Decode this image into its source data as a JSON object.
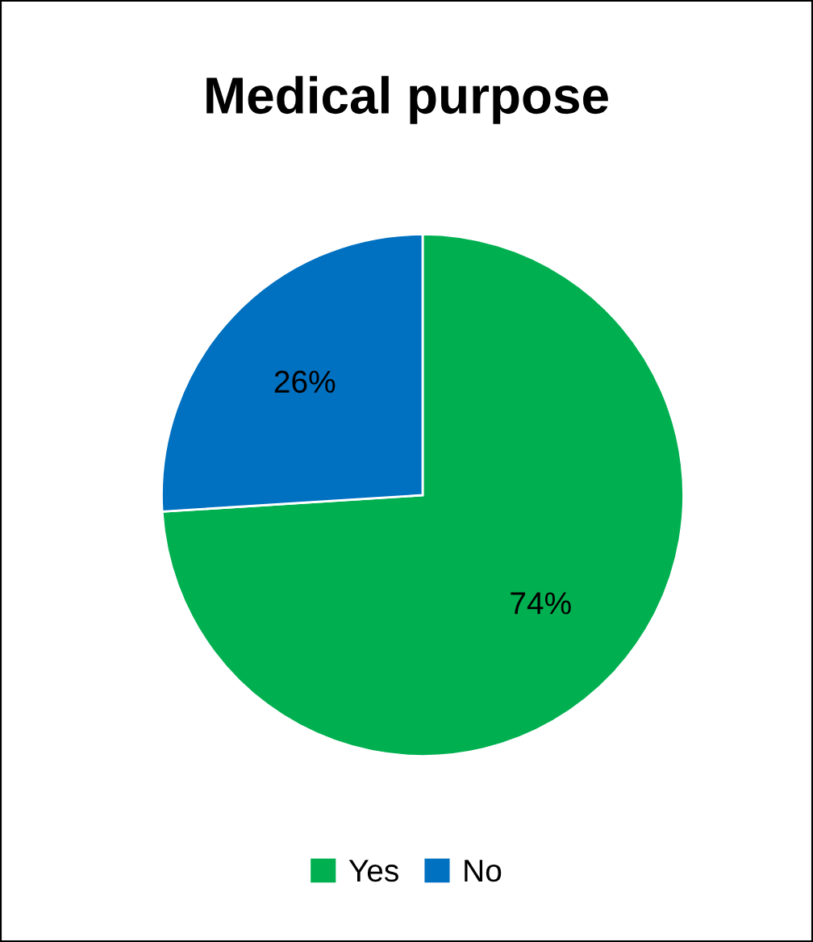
{
  "chart_data": {
    "type": "pie",
    "title": "Medical purpose",
    "categories": [
      "Yes",
      "No"
    ],
    "values": [
      74,
      26
    ],
    "colors": [
      "#00b050",
      "#0070c0"
    ],
    "value_labels": [
      "74%",
      "26%"
    ],
    "legend": "bottom"
  }
}
